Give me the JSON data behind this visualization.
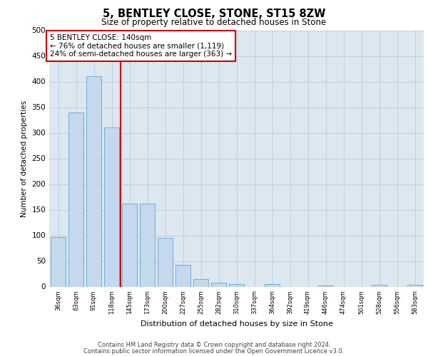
{
  "title1": "5, BENTLEY CLOSE, STONE, ST15 8ZW",
  "title2": "Size of property relative to detached houses in Stone",
  "xlabel": "Distribution of detached houses by size in Stone",
  "ylabel": "Number of detached properties",
  "categories": [
    "36sqm",
    "63sqm",
    "91sqm",
    "118sqm",
    "145sqm",
    "173sqm",
    "200sqm",
    "227sqm",
    "255sqm",
    "282sqm",
    "310sqm",
    "337sqm",
    "364sqm",
    "392sqm",
    "419sqm",
    "446sqm",
    "474sqm",
    "501sqm",
    "528sqm",
    "556sqm",
    "583sqm"
  ],
  "values": [
    97,
    340,
    410,
    310,
    162,
    162,
    95,
    43,
    15,
    8,
    5,
    0,
    5,
    0,
    0,
    2,
    0,
    0,
    3,
    0,
    4
  ],
  "bar_color": "#c5d8ed",
  "bar_edge_color": "#6aafd6",
  "vline_x": 3.5,
  "vline_color": "#cc0000",
  "annotation_text": "5 BENTLEY CLOSE: 140sqm\n← 76% of detached houses are smaller (1,119)\n24% of semi-detached houses are larger (363) →",
  "annotation_box_facecolor": "#ffffff",
  "annotation_box_edgecolor": "#cc0000",
  "ylim": [
    0,
    500
  ],
  "yticks": [
    0,
    50,
    100,
    150,
    200,
    250,
    300,
    350,
    400,
    450,
    500
  ],
  "plot_bg": "#dde7f0",
  "footer1": "Contains HM Land Registry data © Crown copyright and database right 2024.",
  "footer2": "Contains public sector information licensed under the Open Government Licence v3.0.",
  "fig_width": 6.0,
  "fig_height": 5.0,
  "dpi": 100
}
